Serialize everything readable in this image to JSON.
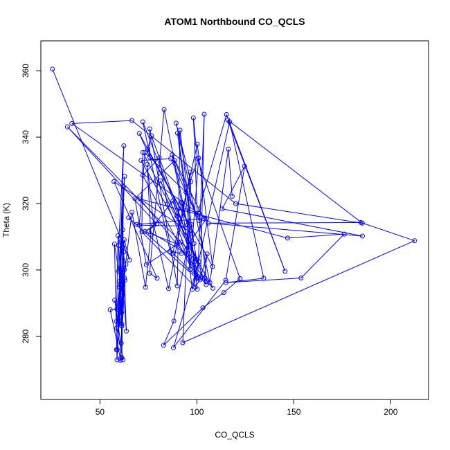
{
  "chart_data": {
    "type": "scatter",
    "title": "ATOM1 Northbound CO_QCLS",
    "xlabel": "CO_QCLS",
    "ylabel": "Theta (K)",
    "xlim": [
      19.5,
      219.5
    ],
    "ylim": [
      261,
      369
    ],
    "xticks": [
      50,
      100,
      150,
      200
    ],
    "yticks": [
      280,
      300,
      320,
      340,
      360
    ],
    "grid": false,
    "legend": "none",
    "colors": {
      "series": "#0000ff",
      "axis": "#000000",
      "background": "#ffffff"
    },
    "series": [
      {
        "connected": true,
        "marker": "open-circle",
        "points": [
          [
            25.5,
            360.5
          ],
          [
            65.3,
            303.0
          ],
          [
            62.5,
            309.1
          ],
          [
            61.2,
            300.5
          ],
          [
            59.6,
            299.6
          ],
          [
            62.7,
            328.2
          ],
          [
            59.6,
            284.0
          ],
          [
            63.4,
            301.7
          ],
          [
            59.3,
            310.3
          ],
          [
            58.5,
            284.5
          ],
          [
            61.2,
            287.2
          ],
          [
            62.6,
            297.6
          ],
          [
            58.5,
            276.0
          ],
          [
            60.4,
            287.5
          ],
          [
            62.9,
            296.9
          ],
          [
            60.5,
            272.8
          ],
          [
            61.3,
            283.7
          ],
          [
            57.6,
            290.9
          ],
          [
            61.9,
            272.9
          ],
          [
            58.6,
            282.5
          ],
          [
            60.1,
            294.8
          ],
          [
            59.6,
            307.4
          ],
          [
            62.3,
            337.4
          ],
          [
            58.9,
            276.0
          ],
          [
            62.2,
            325.1
          ],
          [
            61.0,
            277.9
          ],
          [
            62.6,
            300.1
          ],
          [
            60.1,
            284.9
          ],
          [
            61.9,
            306.8
          ],
          [
            58.8,
            272.9
          ],
          [
            57.5,
            307.8
          ],
          [
            61.7,
            292.3
          ],
          [
            60.4,
            295.6
          ],
          [
            61.3,
            283.1
          ],
          [
            62.3,
            305.4
          ],
          [
            58.7,
            288.2
          ],
          [
            55.3,
            288.0
          ],
          [
            60.5,
            273.4
          ],
          [
            61.3,
            273.6
          ],
          [
            61.9,
            299.3
          ],
          [
            60.2,
            296.6
          ],
          [
            61.8,
            312.1
          ],
          [
            63.6,
            281.6
          ],
          [
            61.9,
            295.4
          ],
          [
            66.5,
            317.4
          ],
          [
            73.5,
            294.8
          ],
          [
            76.2,
            310.6
          ],
          [
            74.4,
            331.8
          ],
          [
            77.7,
            313.5
          ],
          [
            85.4,
            294.4
          ],
          [
            93.3,
            318.6
          ],
          [
            101.1,
            317.0
          ],
          [
            105.0,
            296.5
          ],
          [
            103.8,
            297.5
          ],
          [
            105.3,
            304.8
          ],
          [
            101.6,
            297.0
          ],
          [
            99.1,
            294.9
          ],
          [
            97.1,
            313.7
          ],
          [
            88.1,
            284.6
          ],
          [
            82.8,
            277.3
          ],
          [
            103.1,
            288.6
          ],
          [
            113.9,
            293.2
          ],
          [
            122.3,
            297.4
          ],
          [
            100.2,
            333.5
          ],
          [
            98.2,
            345.8
          ],
          [
            100.2,
            316.6
          ],
          [
            115.3,
            346.8
          ],
          [
            145.5,
            299.6
          ],
          [
            115.9,
            345.2
          ],
          [
            185.3,
            314.1
          ],
          [
            120.0,
            320.0
          ],
          [
            66.5,
            345.0
          ],
          [
            35.5,
            344.1
          ],
          [
            104.9,
            315.4
          ],
          [
            92.0,
            305.0
          ],
          [
            86.2,
            305.5
          ],
          [
            72.1,
            344.6
          ],
          [
            104.8,
            295.6
          ],
          [
            101.9,
            297.6
          ],
          [
            103.8,
            346.9
          ],
          [
            100.4,
            297.8
          ],
          [
            83.1,
            348.3
          ],
          [
            75.6,
            299.0
          ],
          [
            79.5,
            297.5
          ],
          [
            57.2,
            326.6
          ],
          [
            97.6,
            311.0
          ],
          [
            91.3,
            342.1
          ],
          [
            89.9,
            295.2
          ],
          [
            75.7,
            342.5
          ],
          [
            75.7,
            334.0
          ],
          [
            70.3,
            341.1
          ],
          [
            108.1,
            301.0
          ],
          [
            100.2,
            337.9
          ],
          [
            87.6,
            305.0
          ],
          [
            100.2,
            297.8
          ],
          [
            91.6,
            308.4
          ],
          [
            73.9,
            301.6
          ],
          [
            68.0,
            321.5
          ],
          [
            88.6,
            333.0
          ],
          [
            103.5,
            315.5
          ],
          [
            68.8,
            313.7
          ],
          [
            64.7,
            315.7
          ],
          [
            100.1,
            297.4
          ],
          [
            72.1,
            328.5
          ],
          [
            80.6,
            333.8
          ],
          [
            84.7,
            319.8
          ],
          [
            100.2,
            298.2
          ],
          [
            87.6,
            320.8
          ],
          [
            75.3,
            311.6
          ],
          [
            99.9,
            303.2
          ],
          [
            81.1,
            326.9
          ],
          [
            89.7,
            316.2
          ],
          [
            92.4,
            320.0
          ],
          [
            97.6,
            294.1
          ],
          [
            116.9,
            344.6
          ],
          [
            134.5,
            297.5
          ],
          [
            115.0,
            296.2
          ],
          [
            153.7,
            297.6
          ],
          [
            176.0,
            310.8
          ],
          [
            146.8,
            309.6
          ],
          [
            70.6,
            321.4
          ],
          [
            108.3,
            294.5
          ],
          [
            71.2,
            333.0
          ],
          [
            86.5,
            333.5
          ],
          [
            101.1,
            314.9
          ],
          [
            87.3,
            334.7
          ],
          [
            92.1,
            320.4
          ],
          [
            95.1,
            313.5
          ],
          [
            96.5,
            300.2
          ],
          [
            100.9,
            333.7
          ],
          [
            94.4,
            323.4
          ],
          [
            73.2,
            335.3
          ],
          [
            70.3,
            313.5
          ],
          [
            96.3,
            313.2
          ],
          [
            74.5,
            336.3
          ],
          [
            76.6,
            340.4
          ],
          [
            100.2,
            301.7
          ],
          [
            98.5,
            308.0
          ],
          [
            90.0,
            341.2
          ],
          [
            100.2,
            294.2
          ],
          [
            71.6,
            311.5
          ],
          [
            72.1,
            335.4
          ],
          [
            101.0,
            302.5
          ],
          [
            87.9,
            276.6
          ],
          [
            114.9,
            296.9
          ],
          [
            124.6,
            331.2
          ],
          [
            113.0,
            318.4
          ],
          [
            185.4,
            310.2
          ],
          [
            105.9,
            314.1
          ],
          [
            184.6,
            314.3
          ],
          [
            212.3,
            308.8
          ],
          [
            92.7,
            278.1
          ],
          [
            96.5,
            329.4
          ],
          [
            89.8,
            307.8
          ],
          [
            73.2,
            311.6
          ],
          [
            79.2,
            313.9
          ],
          [
            33.2,
            343.1
          ],
          [
            95.6,
            306.1
          ],
          [
            96.9,
            326.6
          ],
          [
            89.3,
            344.2
          ],
          [
            106.7,
            296.2
          ],
          [
            116.2,
            336.4
          ],
          [
            118.2,
            322.2
          ]
        ]
      }
    ]
  }
}
